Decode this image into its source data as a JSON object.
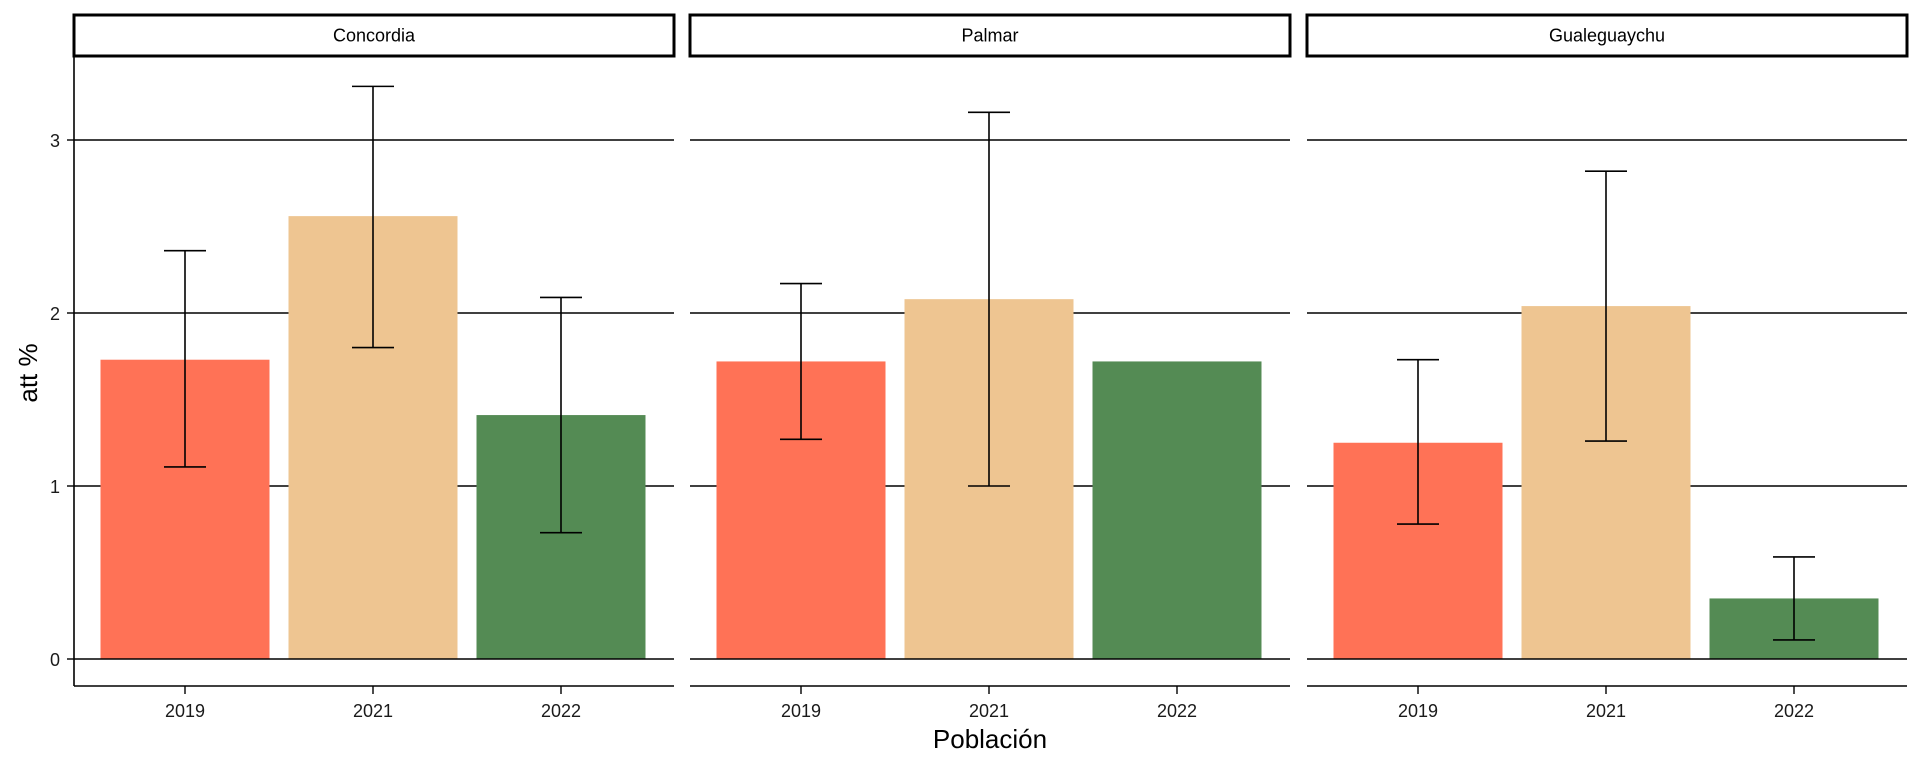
{
  "chart_data": {
    "type": "bar",
    "facets": [
      "Concordia",
      "Palmar",
      "Gualeguaychu"
    ],
    "categories": [
      "2019",
      "2021",
      "2022"
    ],
    "colors": {
      "2019": "#FF7256",
      "2021": "#EEC591",
      "2022": "#548B54"
    },
    "panels": [
      {
        "facet": "Concordia",
        "values": [
          1.73,
          2.56,
          1.41
        ],
        "error_low": [
          1.11,
          1.8,
          0.73
        ],
        "error_high": [
          2.36,
          3.31,
          2.09
        ]
      },
      {
        "facet": "Palmar",
        "values": [
          1.72,
          2.08,
          1.72
        ],
        "error_low": [
          1.27,
          1.0,
          null
        ],
        "error_high": [
          2.17,
          3.16,
          null
        ]
      },
      {
        "facet": "Gualeguaychu",
        "values": [
          1.25,
          2.04,
          0.35
        ],
        "error_low": [
          0.78,
          1.26,
          0.11
        ],
        "error_high": [
          1.73,
          2.82,
          0.59
        ]
      }
    ],
    "xlabel": "Población",
    "ylabel": "att %",
    "yticks": [
      0,
      1,
      2,
      3
    ],
    "ylim": [
      -0.16,
      3.55
    ],
    "grid": "horizontal major lines",
    "legend": "none"
  }
}
